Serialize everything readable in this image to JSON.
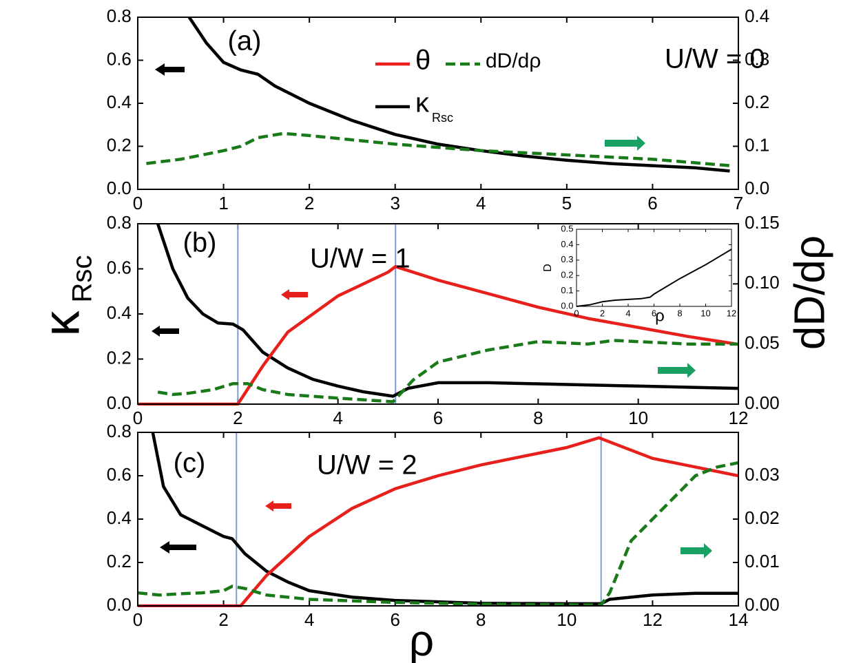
{
  "chart_data": [
    {
      "type": "line",
      "panel_label": "(a)",
      "annotation": "U/W = 0",
      "xlim": [
        0,
        7
      ],
      "xticks": [
        0,
        1,
        2,
        3,
        4,
        5,
        6,
        7
      ],
      "ylim": [
        0,
        0.8
      ],
      "yticks": [
        {
          "value": 0,
          "label": "0.0"
        },
        {
          "value": 0.2,
          "label": "0.2"
        },
        {
          "value": 0.4,
          "label": "0.4"
        },
        {
          "value": 0.6,
          "label": "0.6"
        },
        {
          "value": 0.8,
          "label": "0.8"
        }
      ],
      "y2lim": [
        0,
        0.4
      ],
      "y2ticks": [
        {
          "value": 0,
          "label": "0.0"
        },
        {
          "value": 0.1,
          "label": "0.1"
        },
        {
          "value": 0.2,
          "label": "0.2"
        },
        {
          "value": 0.3,
          "label": "0.3"
        },
        {
          "value": 0.4,
          "label": "0.4"
        }
      ],
      "legend": [
        {
          "name": "θ",
          "color": "#e8201c",
          "dash": false
        },
        {
          "name": "dD/dρ",
          "color": "#1a7a1a",
          "dash": true
        },
        {
          "name": "κ",
          "subscript": "Rsc",
          "color": "#000000",
          "dash": false
        }
      ],
      "series": [
        {
          "color": "#000000",
          "x": [
            0.6,
            0.8,
            1.0,
            1.2,
            1.4,
            1.6,
            2,
            2.5,
            3,
            3.5,
            4,
            4.5,
            5,
            5.5,
            6,
            6.5,
            6.9
          ],
          "values": [
            0.8,
            0.68,
            0.59,
            0.555,
            0.535,
            0.48,
            0.4,
            0.32,
            0.255,
            0.21,
            0.18,
            0.155,
            0.135,
            0.12,
            0.11,
            0.1,
            0.085
          ]
        },
        {
          "color": "#1a7a1a",
          "dash": true,
          "axis": "y2",
          "x": [
            0.1,
            0.5,
            1,
            1.2,
            1.4,
            1.7,
            2,
            3,
            4,
            5,
            6,
            6.9
          ],
          "values": [
            0.06,
            0.07,
            0.09,
            0.1,
            0.12,
            0.13,
            0.125,
            0.105,
            0.09,
            0.08,
            0.07,
            0.055
          ]
        }
      ]
    },
    {
      "type": "line",
      "panel_label": "(b)",
      "annotation": "U/W = 1",
      "ylabel": "κ",
      "ylabel_sub": "Rsc",
      "y2label": "dD/dρ",
      "xlim": [
        0,
        12
      ],
      "xticks": [
        0,
        2,
        4,
        6,
        8,
        10,
        12
      ],
      "ylim": [
        0,
        0.8
      ],
      "yticks": [
        {
          "value": 0,
          "label": "0.0"
        },
        {
          "value": 0.2,
          "label": "0.2"
        },
        {
          "value": 0.4,
          "label": "0.4"
        },
        {
          "value": 0.6,
          "label": "0.6"
        },
        {
          "value": 0.8,
          "label": "0.8"
        }
      ],
      "y2lim": [
        0,
        0.15
      ],
      "y2ticks": [
        {
          "value": 0,
          "label": "0.00"
        },
        {
          "value": 0.05,
          "label": "0.05"
        },
        {
          "value": 0.1,
          "label": "0.10"
        },
        {
          "value": 0.15,
          "label": "0.15"
        }
      ],
      "vlines": [
        2,
        5.15
      ],
      "series": [
        {
          "color": "#000000",
          "x": [
            0.4,
            0.7,
            1,
            1.3,
            1.6,
            1.9,
            2.1,
            2.5,
            3,
            3.5,
            4,
            4.5,
            5.1,
            5.4,
            6,
            7,
            8,
            10,
            12
          ],
          "values": [
            0.8,
            0.6,
            0.47,
            0.4,
            0.36,
            0.355,
            0.33,
            0.23,
            0.16,
            0.11,
            0.08,
            0.055,
            0.035,
            0.07,
            0.095,
            0.095,
            0.09,
            0.08,
            0.07
          ]
        },
        {
          "color": "#e8201c",
          "x": [
            0,
            2,
            2.5,
            3,
            4,
            5,
            5.15,
            6,
            7,
            8,
            9,
            10,
            11,
            12
          ],
          "values": [
            0,
            0,
            0.17,
            0.32,
            0.48,
            0.585,
            0.61,
            0.55,
            0.49,
            0.43,
            0.38,
            0.34,
            0.3,
            0.265
          ]
        },
        {
          "color": "#1a7a1a",
          "dash": true,
          "axis": "y2",
          "x": [
            0.4,
            0.7,
            1,
            1.5,
            1.9,
            2.2,
            2.5,
            3,
            4,
            5.1,
            5.5,
            6,
            7,
            8,
            9,
            9.5,
            10,
            11,
            12
          ],
          "values": [
            0.01,
            0.008,
            0.009,
            0.012,
            0.017,
            0.017,
            0.012,
            0.008,
            0.005,
            0.002,
            0.02,
            0.035,
            0.045,
            0.052,
            0.05,
            0.053,
            0.052,
            0.05,
            0.05
          ]
        }
      ],
      "inset": {
        "type": "line",
        "ylabel": "D",
        "xlabel": "ρ",
        "xlim": [
          0,
          12
        ],
        "xticks": [
          0,
          2,
          4,
          6,
          8,
          10,
          12
        ],
        "ylim": [
          0,
          0.5
        ],
        "yticks": [
          {
            "value": 0,
            "label": "0.0"
          },
          {
            "value": 0.1,
            "label": "0.1"
          },
          {
            "value": 0.2,
            "label": "0.2"
          },
          {
            "value": 0.3,
            "label": "0.3"
          },
          {
            "value": 0.4,
            "label": "0.4"
          },
          {
            "value": 0.5,
            "label": "0.5"
          }
        ],
        "series": [
          {
            "color": "#000000",
            "x": [
              0,
              1,
              2,
              3,
              4,
              5,
              5.7,
              6,
              8,
              10,
              12
            ],
            "values": [
              0,
              0.01,
              0.03,
              0.04,
              0.045,
              0.05,
              0.06,
              0.08,
              0.18,
              0.27,
              0.37
            ]
          }
        ]
      }
    },
    {
      "type": "line",
      "panel_label": "(c)",
      "annotation": "U/W = 2",
      "xlabel": "ρ",
      "xlim": [
        0,
        14
      ],
      "xticks": [
        0,
        2,
        4,
        6,
        8,
        10,
        12,
        14
      ],
      "ylim": [
        0,
        0.8
      ],
      "yticks": [
        {
          "value": 0,
          "label": "0.0"
        },
        {
          "value": 0.2,
          "label": "0.2"
        },
        {
          "value": 0.4,
          "label": "0.4"
        },
        {
          "value": 0.6,
          "label": "0.6"
        },
        {
          "value": 0.8,
          "label": "0.8"
        }
      ],
      "y2lim": [
        0,
        0.04
      ],
      "y2ticks": [
        {
          "value": 0,
          "label": "0.00"
        },
        {
          "value": 0.01,
          "label": "0.01"
        },
        {
          "value": 0.02,
          "label": "0.02"
        },
        {
          "value": 0.03,
          "label": "0.03"
        }
      ],
      "vlines": [
        2.3,
        10.8
      ],
      "series": [
        {
          "color": "#000000",
          "x": [
            0.35,
            0.6,
            1,
            1.5,
            2,
            2.2,
            2.5,
            3,
            3.5,
            4,
            5,
            6,
            8,
            10,
            10.8,
            11,
            12,
            13,
            14
          ],
          "values": [
            0.8,
            0.55,
            0.42,
            0.37,
            0.32,
            0.31,
            0.24,
            0.16,
            0.11,
            0.07,
            0.04,
            0.025,
            0.012,
            0.01,
            0.01,
            0.03,
            0.05,
            0.058,
            0.058
          ]
        },
        {
          "color": "#e8201c",
          "x": [
            0,
            2.4,
            3,
            4,
            5,
            6,
            7,
            8,
            9,
            10,
            10.75,
            12,
            14
          ],
          "values": [
            0,
            0,
            0.14,
            0.32,
            0.45,
            0.54,
            0.6,
            0.65,
            0.69,
            0.73,
            0.775,
            0.68,
            0.6
          ]
        },
        {
          "color": "#1a7a1a",
          "dash": true,
          "axis": "y2",
          "x": [
            0,
            0.5,
            1,
            1.5,
            2,
            2.2,
            2.5,
            3,
            4,
            6,
            8,
            10.8,
            11,
            11.5,
            12,
            12.5,
            13,
            13.5,
            14
          ],
          "values": [
            0.003,
            0.0025,
            0.0028,
            0.003,
            0.0035,
            0.0045,
            0.004,
            0.0025,
            0.0015,
            0.0008,
            0.0004,
            0.0002,
            0.003,
            0.015,
            0.02,
            0.025,
            0.03,
            0.032,
            0.033
          ]
        }
      ]
    }
  ]
}
